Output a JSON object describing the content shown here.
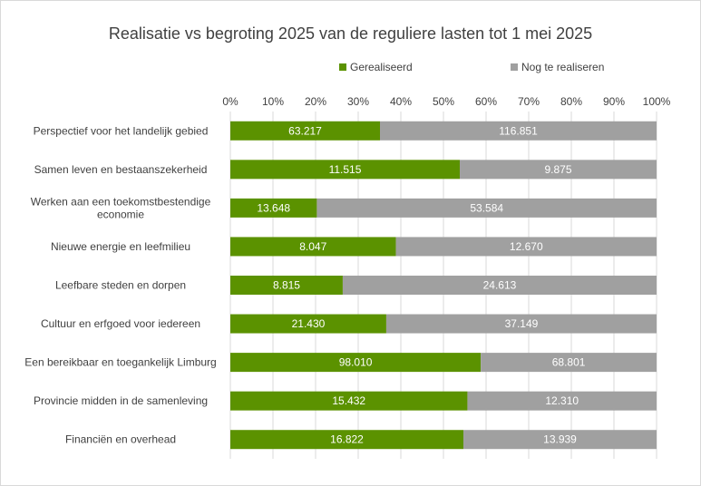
{
  "chart_data": {
    "type": "bar",
    "orientation": "horizontal",
    "stacking": "percent",
    "title": "Realisatie vs begroting 2025 van de reguliere lasten tot 1 mei 2025",
    "legend_position": "top",
    "grid": true,
    "xlim": [
      0,
      100
    ],
    "x_ticks": [
      "0%",
      "10%",
      "20%",
      "30%",
      "40%",
      "50%",
      "60%",
      "70%",
      "80%",
      "90%",
      "100%"
    ],
    "categories": [
      "Perspectief voor het landelijk gebied",
      "Samen leven en bestaanszekerheid",
      "Werken aan een toekomstbestendige economie",
      "Nieuwe energie en leefmilieu",
      "Leefbare steden en dorpen",
      "Cultuur en erfgoed voor iedereen",
      "Een bereikbaar en toegankelijk Limburg",
      "Provincie midden in de samenleving",
      "Financiën en overhead"
    ],
    "series": [
      {
        "name": "Gerealiseerd",
        "color": "#5b9200",
        "values": [
          63217,
          11515,
          13648,
          8047,
          8815,
          21430,
          98010,
          15432,
          16822
        ],
        "labels": [
          "63.217",
          "11.515",
          "13.648",
          "8.047",
          "8.815",
          "21.430",
          "98.010",
          "15.432",
          "16.822"
        ]
      },
      {
        "name": "Nog te realiseren",
        "color": "#a0a0a0",
        "values": [
          116851,
          9875,
          53584,
          12670,
          24613,
          37149,
          68801,
          12310,
          13939
        ],
        "labels": [
          "116.851",
          "9.875",
          "53.584",
          "12.670",
          "24.613",
          "37.149",
          "68.801",
          "12.310",
          "13.939"
        ]
      }
    ]
  }
}
